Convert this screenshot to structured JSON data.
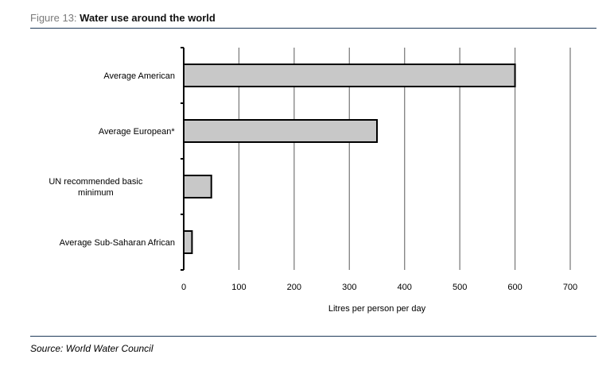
{
  "figure": {
    "number": "Figure 13: ",
    "title": "Water use around the world"
  },
  "source": "Source: World Water Council",
  "chart_data": {
    "type": "bar",
    "orientation": "horizontal",
    "categories": [
      [
        "Average American"
      ],
      [
        "Average European*"
      ],
      [
        "UN recommended basic",
        "minimum"
      ],
      [
        "Average Sub-Saharan African"
      ]
    ],
    "values": [
      600,
      350,
      50,
      15
    ],
    "xlabel": "Litres per person per day",
    "ylabel": "",
    "xlim": [
      0,
      700
    ],
    "xticks": [
      0,
      100,
      200,
      300,
      400,
      500,
      600,
      700
    ],
    "grid": "vertical",
    "bar_color": "#c8c8c8",
    "bar_edge_color": "#000000",
    "grid_color": "#7f7f7f"
  }
}
